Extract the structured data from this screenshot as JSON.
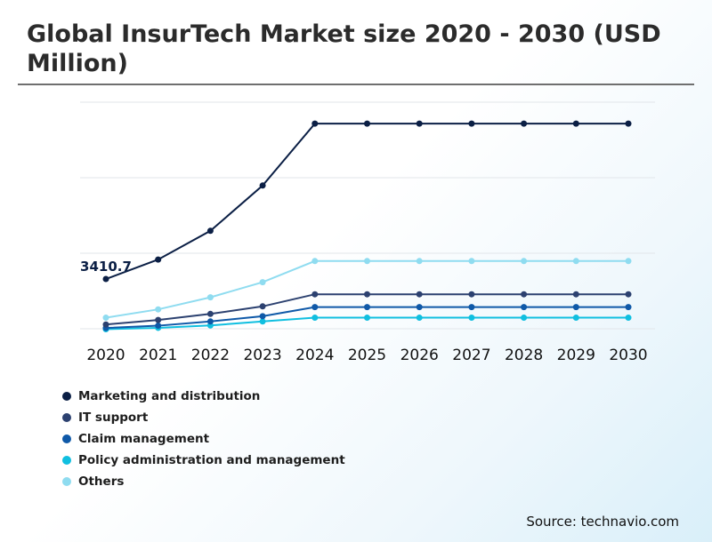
{
  "title": "Global InsurTech Market size 2020 - 2030 (USD Million)",
  "source": "Source: technavio.com",
  "annotation": "3410.7",
  "chart_data": {
    "type": "line",
    "title": "Global InsurTech Market size 2020 - 2030 (USD Million)",
    "x": [
      "2020",
      "2021",
      "2022",
      "2023",
      "2024",
      "2025",
      "2026",
      "2027",
      "2028",
      "2029",
      "2030"
    ],
    "y_axis_labels_shown": false,
    "grid": "horizontal",
    "legend_placement": "bottom-left",
    "ylim": [
      0,
      16000
    ],
    "series": [
      {
        "name": "Marketing and distribution",
        "color": "#0b1f45",
        "values": [
          3410.7,
          4700,
          6600,
          9600,
          13700,
          13700,
          13700,
          13700,
          13700,
          13700,
          13700
        ]
      },
      {
        "name": "IT support",
        "color": "#2c4170",
        "values": [
          400,
          700,
          1100,
          1600,
          2400,
          2400,
          2400,
          2400,
          2400,
          2400,
          2400
        ]
      },
      {
        "name": "Claim management",
        "color": "#0f59a8",
        "values": [
          170,
          320,
          600,
          950,
          1550,
          1550,
          1550,
          1550,
          1550,
          1550,
          1550
        ]
      },
      {
        "name": "Policy administration and management",
        "color": "#10bfe0",
        "values": [
          90,
          180,
          340,
          600,
          850,
          850,
          850,
          850,
          850,
          850,
          850
        ]
      },
      {
        "name": "Others",
        "color": "#8fdcf0",
        "values": [
          850,
          1400,
          2200,
          3200,
          4600,
          4600,
          4600,
          4600,
          4600,
          4600,
          4600
        ]
      }
    ]
  }
}
